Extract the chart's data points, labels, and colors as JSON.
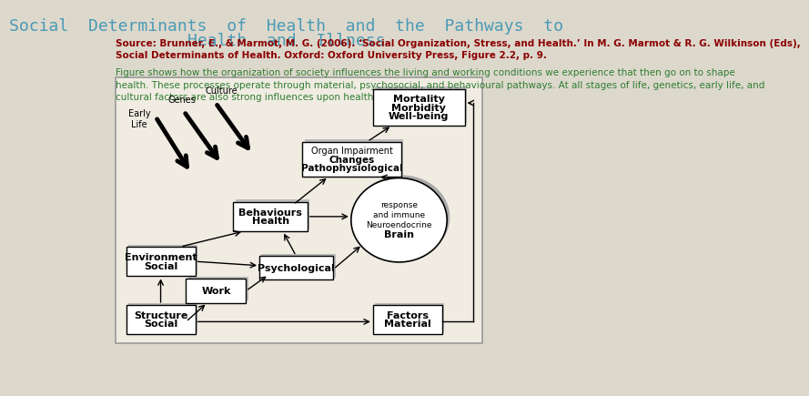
{
  "background_color": "#ddd8cc",
  "diagram_bg": "#f0ece2",
  "title_line1": "Social  Determinants  of  Health  and  the  Pathways  to",
  "title_line2": "Health  and  Illness",
  "title_color": "#4a9ab5",
  "title_fontsize": 13,
  "caption": "Figure shows how the organization of society influences the living and working conditions we experience that then go on to shape\nhealth. These processes operate through material, psychosocial, and behavioural pathways. At all stages of life, genetics, early life, and\ncultural factors are also strong influences upon health.",
  "caption_color": "#2e7d32",
  "caption_fontsize": 7.5,
  "source_line1": "Source: Brunner, E., & Marmot, M. G. (2006). ‘Social Organization, Stress, and Health.’ In M. G. Marmot & R. G. Wilkinson (Eds),",
  "source_line2": "Social Determinants of Health. Oxford: Oxford University Press, Figure 2.2, p. 9.",
  "source_color": "#8b0000",
  "source_fontsize": 7.5
}
